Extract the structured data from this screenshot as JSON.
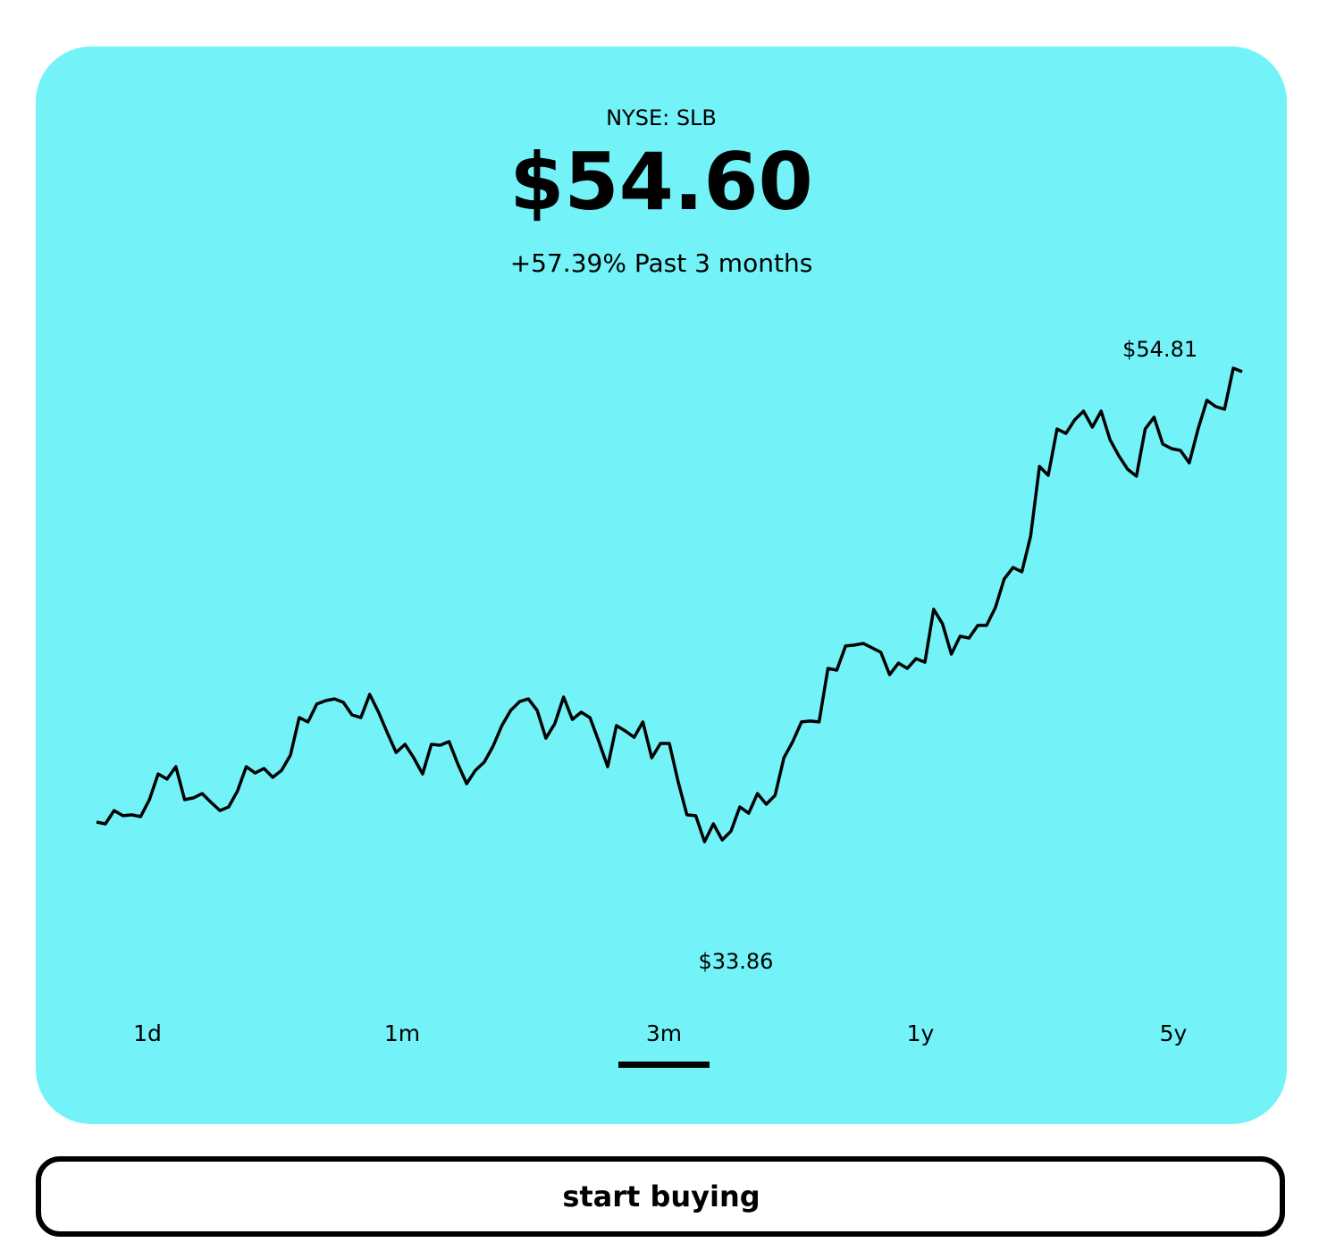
{
  "header": {
    "exchange": "NYSE: SLB",
    "price": "$54.60",
    "change": "+57.39% Past 3 months"
  },
  "chart_data": {
    "type": "line",
    "color": "#000000",
    "max_label": "$54.81",
    "min_label": "$33.86",
    "values": [
      34.73,
      34.65,
      35.24,
      35.01,
      35.05,
      34.97,
      35.72,
      36.86,
      36.63,
      37.18,
      35.72,
      35.8,
      35.99,
      35.6,
      35.24,
      35.4,
      36.11,
      37.18,
      36.9,
      37.1,
      36.71,
      37.02,
      37.69,
      39.35,
      39.16,
      39.95,
      40.1,
      40.18,
      40.03,
      39.47,
      39.35,
      40.38,
      39.59,
      38.68,
      37.81,
      38.17,
      37.57,
      36.86,
      38.17,
      38.13,
      38.29,
      37.3,
      36.43,
      37.02,
      37.38,
      38.09,
      39.0,
      39.67,
      40.06,
      40.18,
      39.67,
      38.44,
      39.08,
      40.26,
      39.27,
      39.59,
      39.35,
      38.29,
      37.18,
      39.0,
      38.76,
      38.48,
      39.16,
      37.57,
      38.21,
      38.21,
      36.51,
      35.05,
      35.01,
      33.86,
      34.65,
      33.94,
      34.33,
      35.4,
      35.12,
      35.99,
      35.52,
      35.91,
      37.57,
      38.29,
      39.16,
      39.2,
      39.16,
      41.53,
      41.45,
      42.52,
      42.56,
      42.63,
      42.44,
      42.24,
      41.25,
      41.76,
      41.53,
      41.96,
      41.8,
      44.14,
      43.5,
      42.16,
      42.95,
      42.87,
      43.43,
      43.43,
      44.22,
      45.48,
      45.99,
      45.8,
      47.38,
      50.46,
      50.07,
      52.12,
      51.92,
      52.52,
      52.91,
      52.2,
      52.91,
      51.65,
      50.94,
      50.34,
      50.03,
      52.12,
      52.64,
      51.45,
      51.25,
      51.17,
      50.62,
      52.12,
      53.39,
      53.11,
      52.99,
      54.81,
      54.65
    ]
  },
  "tabs": {
    "items": [
      "1d",
      "1m",
      "3m",
      "1y",
      "5y"
    ],
    "selected": 2
  },
  "button": {
    "label": "start buying"
  }
}
